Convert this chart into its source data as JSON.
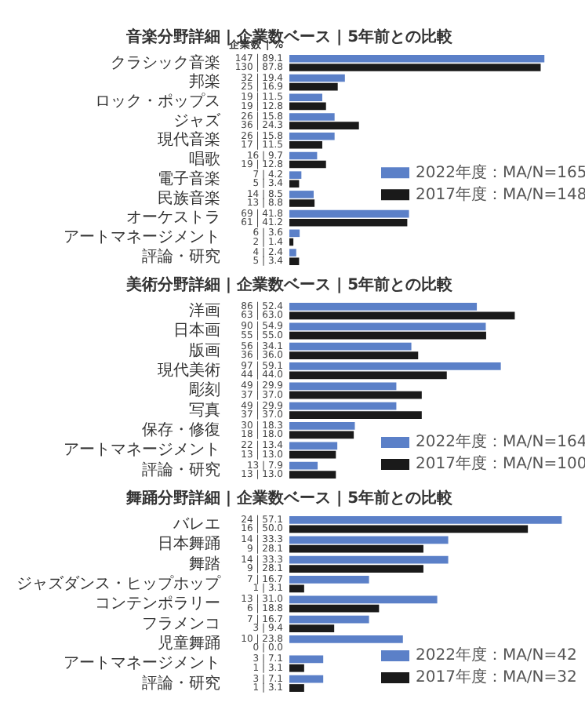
{
  "chart_data": [
    {
      "type": "bar",
      "orientation": "horizontal",
      "title": "音楽分野詳細 | 企業数ベース | 5年前との比較",
      "annotations": [
        "企業数 | %"
      ],
      "legend": "right",
      "tick_labels": "y",
      "categories": [
        "クラシック音楽",
        "邦楽",
        "ロック・ポップス",
        "ジャズ",
        "現代音楽",
        "唱歌",
        "電子音楽",
        "民族音楽",
        "オーケストラ",
        "アートマネージメント",
        "評論・研究"
      ],
      "series": [
        {
          "name": "2022年度：MA/N=165",
          "color": "#5b80c8",
          "values": [
            89.1,
            19.4,
            11.5,
            15.8,
            15.8,
            9.7,
            4.2,
            8.5,
            41.8,
            3.6,
            2.4
          ],
          "value_labels": [
            "147 | 89.1",
            "32 | 19.4",
            "19 | 11.5",
            "26 | 15.8",
            "26 | 15.8",
            "16 | 9.7",
            "7 | 4.2",
            "14 | 8.5",
            "69 | 41.8",
            "6 | 3.6",
            "4 | 2.4"
          ]
        },
        {
          "name": "2017年度：MA/N=148",
          "color": "#1a1a1a",
          "values": [
            87.8,
            16.9,
            12.8,
            24.3,
            11.5,
            12.8,
            3.4,
            8.8,
            41.2,
            1.4,
            3.4
          ],
          "value_labels": [
            "130 | 87.8",
            "25 | 16.9",
            "19 | 12.8",
            "36 | 24.3",
            "17 | 11.5",
            "19 | 12.8",
            "5 | 3.4",
            "13 | 8.8",
            "61 | 41.2",
            "2 | 1.4",
            "5 | 3.4"
          ]
        }
      ]
    },
    {
      "type": "bar",
      "orientation": "horizontal",
      "title": "美術分野詳細 | 企業数ベース | 5年前との比較",
      "legend": "right",
      "tick_labels": "y",
      "categories": [
        "洋画",
        "日本画",
        "版画",
        "現代美術",
        "彫刻",
        "写真",
        "保存・修復",
        "アートマネージメント",
        "評論・研究"
      ],
      "series": [
        {
          "name": "2022年度：MA/N=164",
          "color": "#5b80c8",
          "values": [
            52.4,
            54.9,
            34.1,
            59.1,
            29.9,
            29.9,
            18.3,
            13.4,
            7.9
          ],
          "value_labels": [
            "86 | 52.4",
            "90 | 54.9",
            "56 | 34.1",
            "97 | 59.1",
            "49 | 29.9",
            "49 | 29.9",
            "30 | 18.3",
            "22 | 13.4",
            "13 | 7.9"
          ]
        },
        {
          "name": "2017年度：MA/N=100",
          "color": "#1a1a1a",
          "values": [
            63.0,
            55.0,
            36.0,
            44.0,
            37.0,
            37.0,
            18.0,
            13.0,
            13.0
          ],
          "value_labels": [
            "63 | 63.0",
            "55 | 55.0",
            "36 | 36.0",
            "44 | 44.0",
            "37 | 37.0",
            "37 | 37.0",
            "18 | 18.0",
            "13 | 13.0",
            "13 | 13.0"
          ]
        }
      ]
    },
    {
      "type": "bar",
      "orientation": "horizontal",
      "title": "舞踊分野詳細 | 企業数ベース | 5年前との比較",
      "legend": "right",
      "tick_labels": "y",
      "categories": [
        "バレエ",
        "日本舞踊",
        "舞踏",
        "ジャズダンス・ヒップホップ",
        "コンテンポラリー",
        "フラメンコ",
        "児童舞踊",
        "アートマネージメント",
        "評論・研究"
      ],
      "series": [
        {
          "name": "2022年度：MA/N=42",
          "color": "#5b80c8",
          "values": [
            57.1,
            33.3,
            33.3,
            16.7,
            31.0,
            16.7,
            23.8,
            7.1,
            7.1
          ],
          "value_labels": [
            "24 | 57.1",
            "14 | 33.3",
            "14 | 33.3",
            "7 | 16.7",
            "13 | 31.0",
            "7 | 16.7",
            "10 | 23.8",
            "3 | 7.1",
            "3 | 7.1"
          ]
        },
        {
          "name": "2017年度：MA/N=32",
          "color": "#1a1a1a",
          "values": [
            50.0,
            28.1,
            28.1,
            3.1,
            18.8,
            9.4,
            0.0,
            3.1,
            3.1
          ],
          "value_labels": [
            "16 | 50.0",
            "9 | 28.1",
            "9 | 28.1",
            "1 | 3.1",
            "6 | 18.8",
            "3 | 9.4",
            "0 | 0.0",
            "1 | 3.1",
            "1 | 3.1"
          ]
        }
      ]
    }
  ]
}
